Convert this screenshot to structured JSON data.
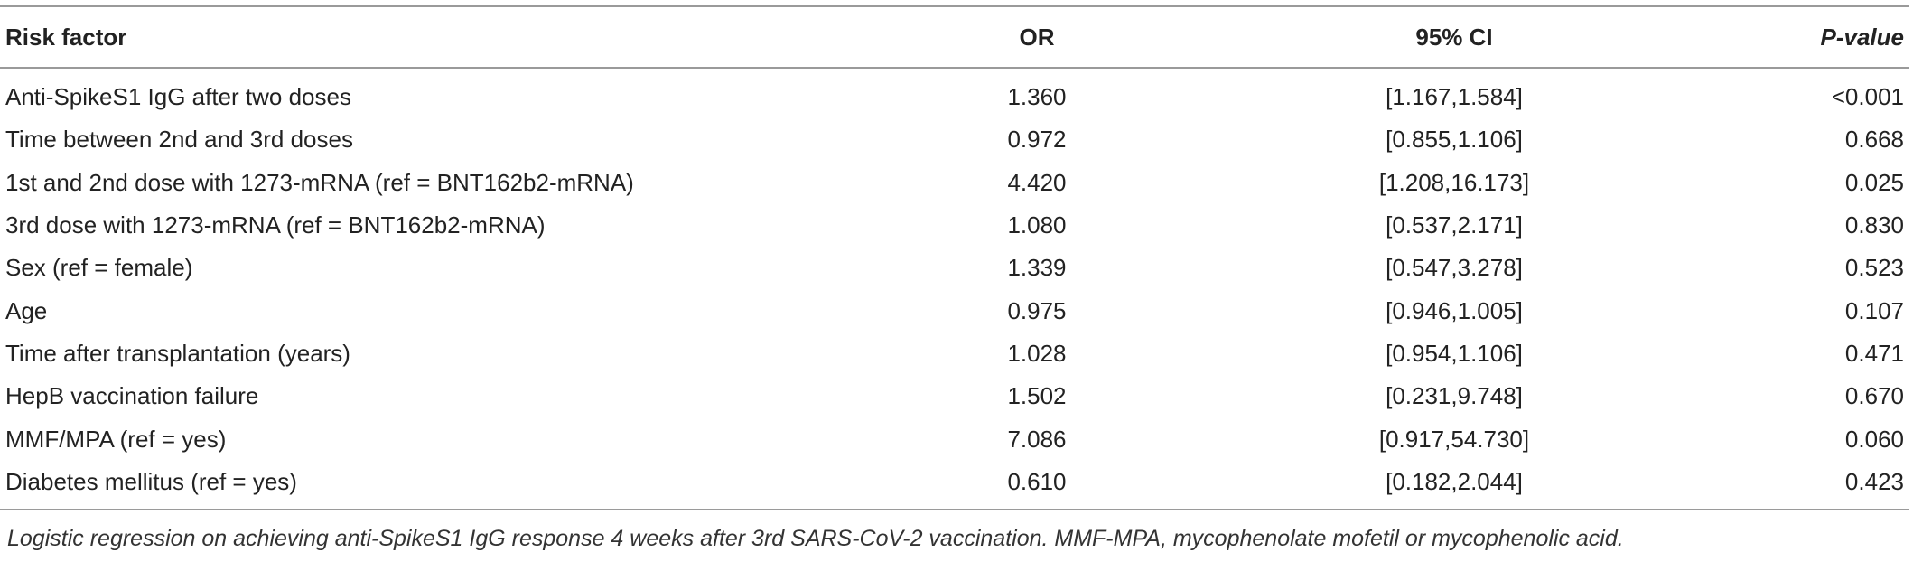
{
  "table": {
    "columns": [
      "Risk factor",
      "OR",
      "95% CI",
      "P-value"
    ],
    "rows": [
      [
        "Anti-SpikeS1 IgG after two doses",
        "1.360",
        "[1.167,1.584]",
        "<0.001"
      ],
      [
        "Time between 2nd and 3rd doses",
        "0.972",
        "[0.855,1.106]",
        "0.668"
      ],
      [
        "1st and 2nd dose with 1273-mRNA (ref = BNT162b2-mRNA)",
        "4.420",
        "[1.208,16.173]",
        "0.025"
      ],
      [
        "3rd dose with 1273-mRNA (ref = BNT162b2-mRNA)",
        "1.080",
        "[0.537,2.171]",
        "0.830"
      ],
      [
        "Sex (ref = female)",
        "1.339",
        "[0.547,3.278]",
        "0.523"
      ],
      [
        "Age",
        "0.975",
        "[0.946,1.005]",
        "0.107"
      ],
      [
        "Time after transplantation (years)",
        "1.028",
        "[0.954,1.106]",
        "0.471"
      ],
      [
        "HepB vaccination failure",
        "1.502",
        "[0.231,9.748]",
        "0.670"
      ],
      [
        "MMF/MPA (ref = yes)",
        "7.086",
        "[0.917,54.730]",
        "0.060"
      ],
      [
        "Diabetes mellitus (ref = yes)",
        "0.610",
        "[0.182,2.044]",
        "0.423"
      ]
    ],
    "footnote": "Logistic regression on achieving anti-SpikeS1 IgG response 4 weeks after 3rd SARS-CoV-2 vaccination. MMF-MPA, mycophenolate mofetil or mycophenolic acid."
  }
}
